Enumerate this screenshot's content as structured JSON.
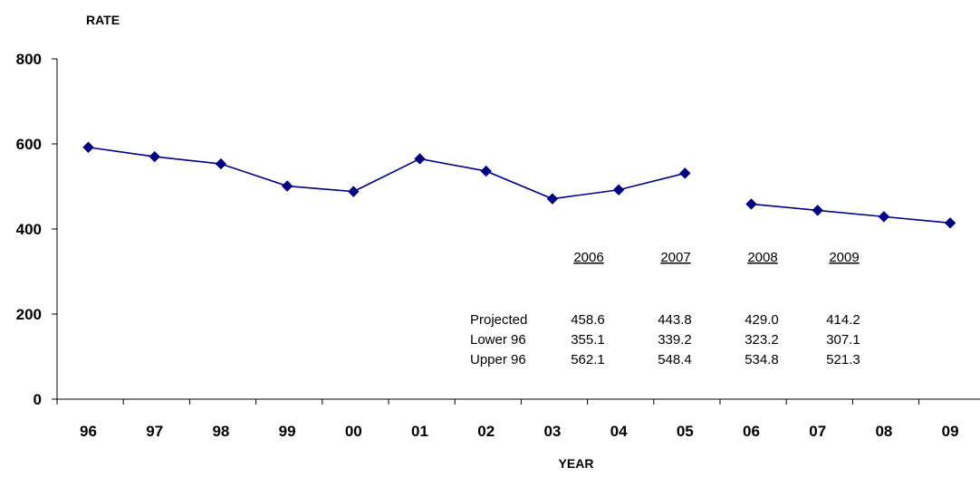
{
  "chart_data": {
    "type": "line",
    "ylabel": "RATE",
    "xlabel": "YEAR",
    "ylim": [
      0,
      800
    ],
    "yticks": [
      0,
      200,
      400,
      600,
      800
    ],
    "categories": [
      "96",
      "97",
      "98",
      "99",
      "00",
      "01",
      "02",
      "03",
      "04",
      "05",
      "06",
      "07",
      "08",
      "09"
    ],
    "series": [
      {
        "values": [
          592,
          570,
          553,
          501,
          488,
          565,
          536,
          471,
          492,
          531,
          null,
          null,
          null,
          null
        ]
      },
      {
        "values": [
          null,
          null,
          null,
          null,
          null,
          null,
          null,
          null,
          null,
          null,
          458.6,
          443.8,
          429.0,
          414.2
        ]
      }
    ],
    "line_color": "#000080",
    "table": {
      "headers": [
        "2006",
        "2007",
        "2008",
        "2009"
      ],
      "rows": [
        {
          "label": "Projected",
          "values": [
            "458.6",
            "443.8",
            "429.0",
            "414.2"
          ]
        },
        {
          "label": "Lower 96",
          "values": [
            "355.1",
            "339.2",
            "323.2",
            "307.1"
          ]
        },
        {
          "label": "Upper 96",
          "values": [
            "562.1",
            "548.4",
            "534.8",
            "521.3"
          ]
        }
      ]
    },
    "grid": false
  }
}
